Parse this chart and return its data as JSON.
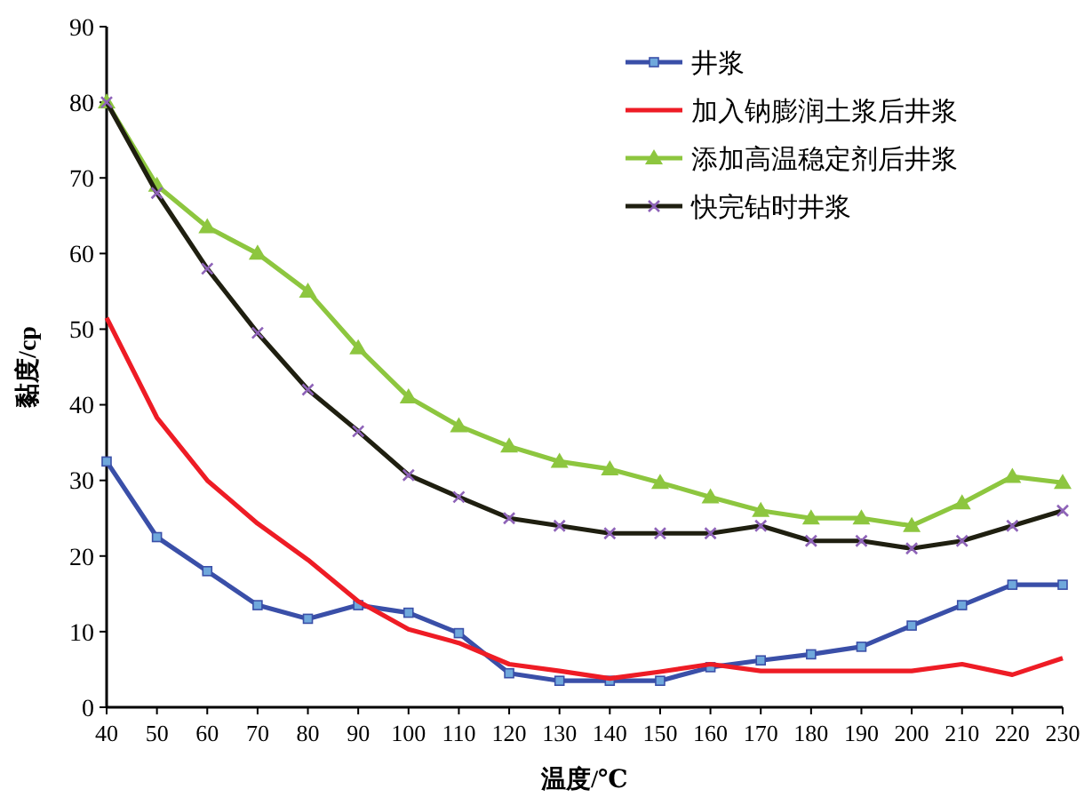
{
  "chart_data": {
    "type": "line",
    "xlabel": "温度/℃",
    "ylabel": "黏度/cp",
    "x": [
      40,
      50,
      60,
      70,
      80,
      90,
      100,
      110,
      120,
      130,
      140,
      150,
      160,
      170,
      180,
      190,
      200,
      210,
      220,
      230
    ],
    "xlim": [
      40,
      230
    ],
    "xticks": [
      40,
      50,
      60,
      70,
      80,
      90,
      100,
      110,
      120,
      130,
      140,
      150,
      160,
      170,
      180,
      190,
      200,
      210,
      220,
      230
    ],
    "ylim": [
      0,
      90
    ],
    "yticks": [
      0,
      10,
      20,
      30,
      40,
      50,
      60,
      70,
      80,
      90
    ],
    "grid": false,
    "legend": "top right",
    "series": [
      {
        "name": "井浆",
        "color": "#3a4fa8",
        "marker": "square",
        "values": [
          32.5,
          22.5,
          18,
          13.5,
          11.7,
          13.5,
          12.5,
          9.8,
          4.5,
          3.5,
          3.5,
          3.5,
          5.3,
          6.2,
          7,
          8,
          10.8,
          13.5,
          16.2,
          16.2
        ]
      },
      {
        "name": "加入钠膨润土浆后井浆",
        "color": "#ee1c25",
        "marker": "none",
        "values": [
          51.5,
          38.3,
          30,
          24.3,
          19.5,
          14,
          10.3,
          8.5,
          5.7,
          4.8,
          3.8,
          4.7,
          5.7,
          4.8,
          4.8,
          4.8,
          4.8,
          5.7,
          4.3,
          6.5
        ]
      },
      {
        "name": "添加高温稳定剂后井浆",
        "color": "#8dc63f",
        "marker": "triangle",
        "values": [
          80,
          69,
          63.5,
          60,
          55,
          47.5,
          41,
          37.2,
          34.5,
          32.5,
          31.5,
          29.7,
          27.8,
          26,
          25,
          25,
          24,
          27,
          30.5,
          29.7
        ]
      },
      {
        "name": "快完钻时井浆",
        "color": "#1f1f10",
        "marker": "cross",
        "values": [
          80,
          68,
          58,
          49.5,
          42,
          36.5,
          30.7,
          27.8,
          25,
          24,
          23,
          23,
          23,
          24,
          22,
          22,
          21,
          22,
          24,
          26
        ]
      }
    ]
  }
}
